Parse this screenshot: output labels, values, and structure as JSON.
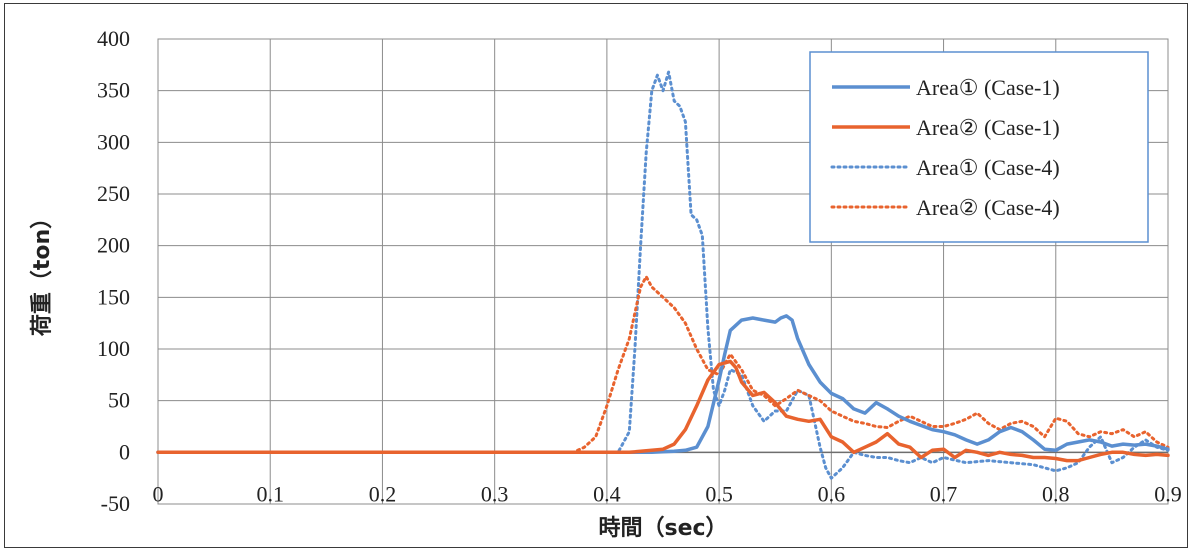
{
  "chart_data": {
    "type": "line",
    "xlabel": "時間（sec）",
    "ylabel": "荷重（ton）",
    "xlim": [
      0,
      0.9
    ],
    "ylim": [
      -50,
      400
    ],
    "xticks": [
      0,
      0.1,
      0.2,
      0.3,
      0.4,
      0.5,
      0.6,
      0.7,
      0.8,
      0.9
    ],
    "xtick_labels": [
      "0",
      "0.1",
      "0.2",
      "0.3",
      "0.4",
      "0.5",
      "0.6",
      "0.7",
      "0.8",
      "0.9"
    ],
    "yticks": [
      -50,
      0,
      50,
      100,
      150,
      200,
      250,
      300,
      350,
      400
    ],
    "ytick_labels": [
      "-50",
      "0",
      "50",
      "100",
      "150",
      "200",
      "250",
      "300",
      "350",
      "400"
    ],
    "grid": true,
    "legend_position": "top-right",
    "series": [
      {
        "name": "Area① (Case-1)",
        "color": "#5b8fd0",
        "style": "solid",
        "x": [
          0,
          0.4,
          0.44,
          0.46,
          0.47,
          0.48,
          0.49,
          0.5,
          0.505,
          0.51,
          0.52,
          0.53,
          0.54,
          0.55,
          0.555,
          0.56,
          0.565,
          0.57,
          0.58,
          0.59,
          0.6,
          0.61,
          0.62,
          0.63,
          0.64,
          0.65,
          0.66,
          0.67,
          0.68,
          0.69,
          0.7,
          0.71,
          0.72,
          0.73,
          0.74,
          0.75,
          0.76,
          0.77,
          0.78,
          0.79,
          0.8,
          0.81,
          0.82,
          0.83,
          0.84,
          0.85,
          0.86,
          0.87,
          0.88,
          0.89,
          0.9
        ],
        "values": [
          0,
          0,
          0,
          1,
          2,
          5,
          25,
          70,
          95,
          118,
          128,
          130,
          128,
          126,
          130,
          132,
          128,
          110,
          85,
          68,
          57,
          52,
          42,
          38,
          48,
          42,
          35,
          30,
          26,
          22,
          20,
          17,
          12,
          8,
          12,
          20,
          24,
          20,
          12,
          3,
          2,
          8,
          10,
          12,
          10,
          6,
          8,
          7,
          8,
          6,
          3
        ]
      },
      {
        "name": "Area② (Case-1)",
        "color": "#e8632e",
        "style": "solid",
        "x": [
          0,
          0.42,
          0.44,
          0.45,
          0.46,
          0.47,
          0.48,
          0.49,
          0.5,
          0.51,
          0.515,
          0.52,
          0.53,
          0.54,
          0.55,
          0.56,
          0.57,
          0.58,
          0.59,
          0.6,
          0.61,
          0.62,
          0.63,
          0.64,
          0.65,
          0.66,
          0.67,
          0.68,
          0.69,
          0.7,
          0.71,
          0.72,
          0.73,
          0.74,
          0.75,
          0.76,
          0.77,
          0.78,
          0.79,
          0.8,
          0.81,
          0.82,
          0.83,
          0.84,
          0.85,
          0.86,
          0.87,
          0.88,
          0.89,
          0.9
        ],
        "values": [
          0,
          0,
          2,
          3,
          8,
          22,
          45,
          70,
          85,
          88,
          82,
          68,
          55,
          58,
          48,
          35,
          32,
          30,
          32,
          15,
          10,
          0,
          5,
          10,
          18,
          8,
          5,
          -5,
          2,
          3,
          -5,
          2,
          0,
          -3,
          0,
          -2,
          -3,
          -5,
          -5,
          -6,
          -8,
          -8,
          -5,
          -2,
          0,
          0,
          -2,
          -3,
          -2,
          -3
        ]
      },
      {
        "name": "Area① (Case-4)",
        "color": "#5b8fd0",
        "style": "dotted",
        "x": [
          0,
          0.41,
          0.42,
          0.425,
          0.43,
          0.435,
          0.44,
          0.445,
          0.45,
          0.455,
          0.46,
          0.465,
          0.47,
          0.475,
          0.48,
          0.485,
          0.49,
          0.495,
          0.5,
          0.505,
          0.51,
          0.52,
          0.53,
          0.54,
          0.55,
          0.56,
          0.57,
          0.58,
          0.59,
          0.595,
          0.6,
          0.61,
          0.62,
          0.63,
          0.64,
          0.65,
          0.66,
          0.67,
          0.68,
          0.69,
          0.7,
          0.72,
          0.74,
          0.76,
          0.78,
          0.8,
          0.81,
          0.82,
          0.83,
          0.84,
          0.85,
          0.86,
          0.87,
          0.88,
          0.89,
          0.9
        ],
        "values": [
          0,
          0,
          20,
          100,
          200,
          290,
          350,
          365,
          350,
          368,
          340,
          335,
          320,
          230,
          225,
          210,
          120,
          60,
          45,
          60,
          80,
          75,
          45,
          30,
          40,
          40,
          60,
          55,
          5,
          -15,
          -25,
          -15,
          0,
          -3,
          -5,
          -5,
          -8,
          -10,
          -5,
          -10,
          -5,
          -10,
          -8,
          -10,
          -12,
          -18,
          -15,
          -10,
          5,
          15,
          -10,
          -5,
          5,
          12,
          5,
          2
        ]
      },
      {
        "name": "Area② (Case-4)",
        "color": "#e8632e",
        "style": "dotted",
        "x": [
          0,
          0.37,
          0.38,
          0.39,
          0.4,
          0.41,
          0.42,
          0.43,
          0.435,
          0.44,
          0.45,
          0.46,
          0.47,
          0.48,
          0.49,
          0.5,
          0.51,
          0.52,
          0.53,
          0.54,
          0.55,
          0.56,
          0.57,
          0.58,
          0.59,
          0.6,
          0.61,
          0.62,
          0.63,
          0.64,
          0.65,
          0.66,
          0.67,
          0.68,
          0.69,
          0.7,
          0.71,
          0.72,
          0.73,
          0.74,
          0.75,
          0.76,
          0.77,
          0.78,
          0.79,
          0.8,
          0.81,
          0.82,
          0.83,
          0.84,
          0.85,
          0.86,
          0.87,
          0.88,
          0.89,
          0.9
        ],
        "values": [
          0,
          0,
          5,
          15,
          45,
          80,
          110,
          160,
          170,
          160,
          150,
          140,
          125,
          100,
          80,
          75,
          95,
          80,
          60,
          55,
          45,
          52,
          60,
          55,
          50,
          40,
          35,
          30,
          28,
          25,
          24,
          30,
          35,
          30,
          25,
          25,
          28,
          32,
          38,
          28,
          22,
          28,
          30,
          25,
          15,
          33,
          30,
          18,
          15,
          20,
          18,
          22,
          15,
          20,
          10,
          5
        ]
      }
    ]
  }
}
